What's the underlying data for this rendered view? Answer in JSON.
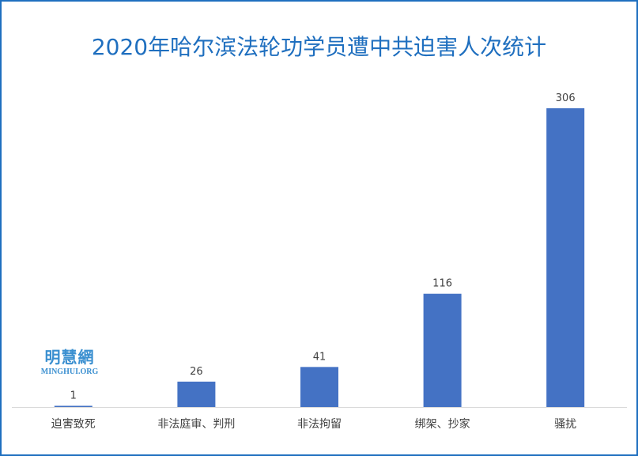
{
  "chart_data": {
    "type": "bar",
    "title": "2020年哈尔滨法轮功学员遭中共迫害人次统计",
    "categories": [
      "迫害致死",
      "非法庭审、判刑",
      "非法拘留",
      "绑架、抄家",
      "骚扰"
    ],
    "values": [
      1,
      26,
      41,
      116,
      306
    ],
    "xlabel": "",
    "ylabel": "",
    "ylim": [
      0,
      306
    ],
    "grid": false,
    "bar_color": "#4472c4"
  },
  "logo": {
    "cn": "明慧網",
    "en": "MINGHUI.ORG"
  }
}
